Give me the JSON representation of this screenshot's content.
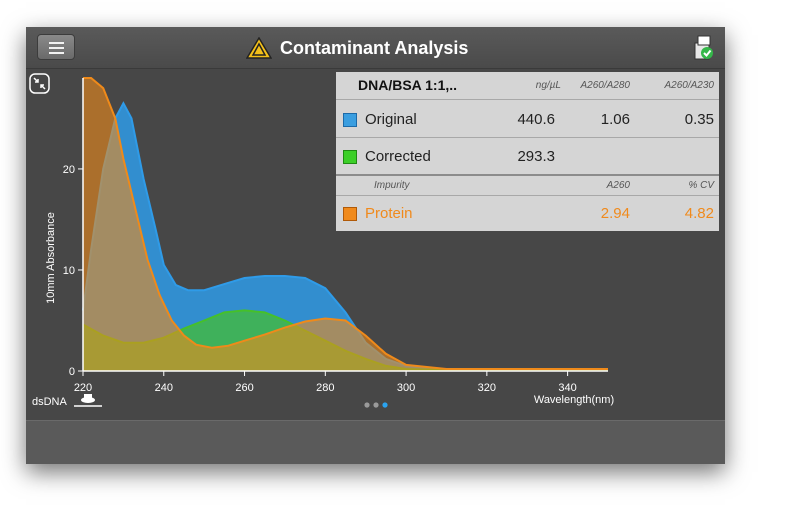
{
  "app": {
    "title": "Contaminant Analysis"
  },
  "icons": {
    "menu": "menu-icon",
    "warning": "warning-triangle-icon",
    "report": "report-check-icon",
    "collapse": "collapse-arrows-icon",
    "sample": "sample-stage-icon"
  },
  "results": {
    "sample_name": "DNA/BSA 1:1,..",
    "headers": {
      "conc": "ng/µL",
      "a260_280": "A260/A280",
      "a260_230": "A260/A230"
    },
    "rows": [
      {
        "label": "Original",
        "color": "#3a9ee0",
        "conc": "440.6",
        "a260_280": "1.06",
        "a260_230": "0.35"
      },
      {
        "label": "Corrected",
        "color": "#3ccf28",
        "conc": "293.3",
        "a260_280": "",
        "a260_230": ""
      }
    ],
    "impurity_headers": {
      "impurity": "Impurity",
      "a260": "A260",
      "cv": "% CV"
    },
    "impurity": {
      "label": "Protein",
      "color": "#f08a1c",
      "a260": "2.94",
      "cv": "4.82"
    }
  },
  "chart_data": {
    "type": "area",
    "title": "",
    "xlabel": "Wavelength(nm)",
    "ylabel": "10mm Absorbance",
    "xlim": [
      220,
      350
    ],
    "ylim": [
      0,
      29
    ],
    "x_ticks": [
      "220",
      "240",
      "260",
      "280",
      "300",
      "320",
      "340"
    ],
    "y_ticks": [
      "0",
      "10",
      "20"
    ],
    "series": [
      {
        "name": "Original",
        "color": "#2f9be8",
        "x": [
          220,
          222,
          225,
          228,
          230,
          232,
          235,
          238,
          240,
          243,
          246,
          250,
          255,
          260,
          265,
          270,
          275,
          280,
          285,
          290,
          295,
          300,
          310,
          320,
          340,
          350
        ],
        "y": [
          6,
          12,
          20,
          25,
          26.5,
          25,
          19,
          14,
          10.5,
          8.5,
          8,
          8,
          8.6,
          9.2,
          9.4,
          9.4,
          9.2,
          8.2,
          5.8,
          2.8,
          1.2,
          0.5,
          0.15,
          0.1,
          0.05,
          0.05
        ]
      },
      {
        "name": "Corrected",
        "color": "#45c02a",
        "x": [
          220,
          225,
          230,
          235,
          240,
          245,
          250,
          255,
          260,
          265,
          270,
          275,
          280,
          285,
          290,
          295,
          300,
          310,
          330,
          350
        ],
        "y": [
          4.6,
          3.5,
          2.8,
          2.8,
          3.3,
          4.2,
          5.0,
          5.8,
          6.0,
          5.8,
          5.0,
          4.0,
          3.0,
          2.0,
          1.2,
          0.5,
          0.2,
          0.1,
          0.05,
          0.05
        ]
      },
      {
        "name": "Protein",
        "color": "#ef8a1a",
        "x": [
          220,
          222,
          225,
          228,
          230,
          233,
          236,
          239,
          242,
          245,
          248,
          252,
          256,
          260,
          265,
          270,
          275,
          280,
          285,
          290,
          295,
          300,
          310,
          330,
          350
        ],
        "y": [
          29,
          29,
          28,
          25,
          21,
          16,
          11,
          7.5,
          5,
          3.5,
          2.6,
          2.3,
          2.5,
          3.0,
          3.6,
          4.3,
          4.9,
          5.2,
          5.0,
          3.5,
          1.7,
          0.6,
          0.2,
          0.2,
          0.2
        ]
      }
    ]
  },
  "footer": {
    "dataset_label": "dsDNA",
    "page_count": 3,
    "active_page": 3
  }
}
